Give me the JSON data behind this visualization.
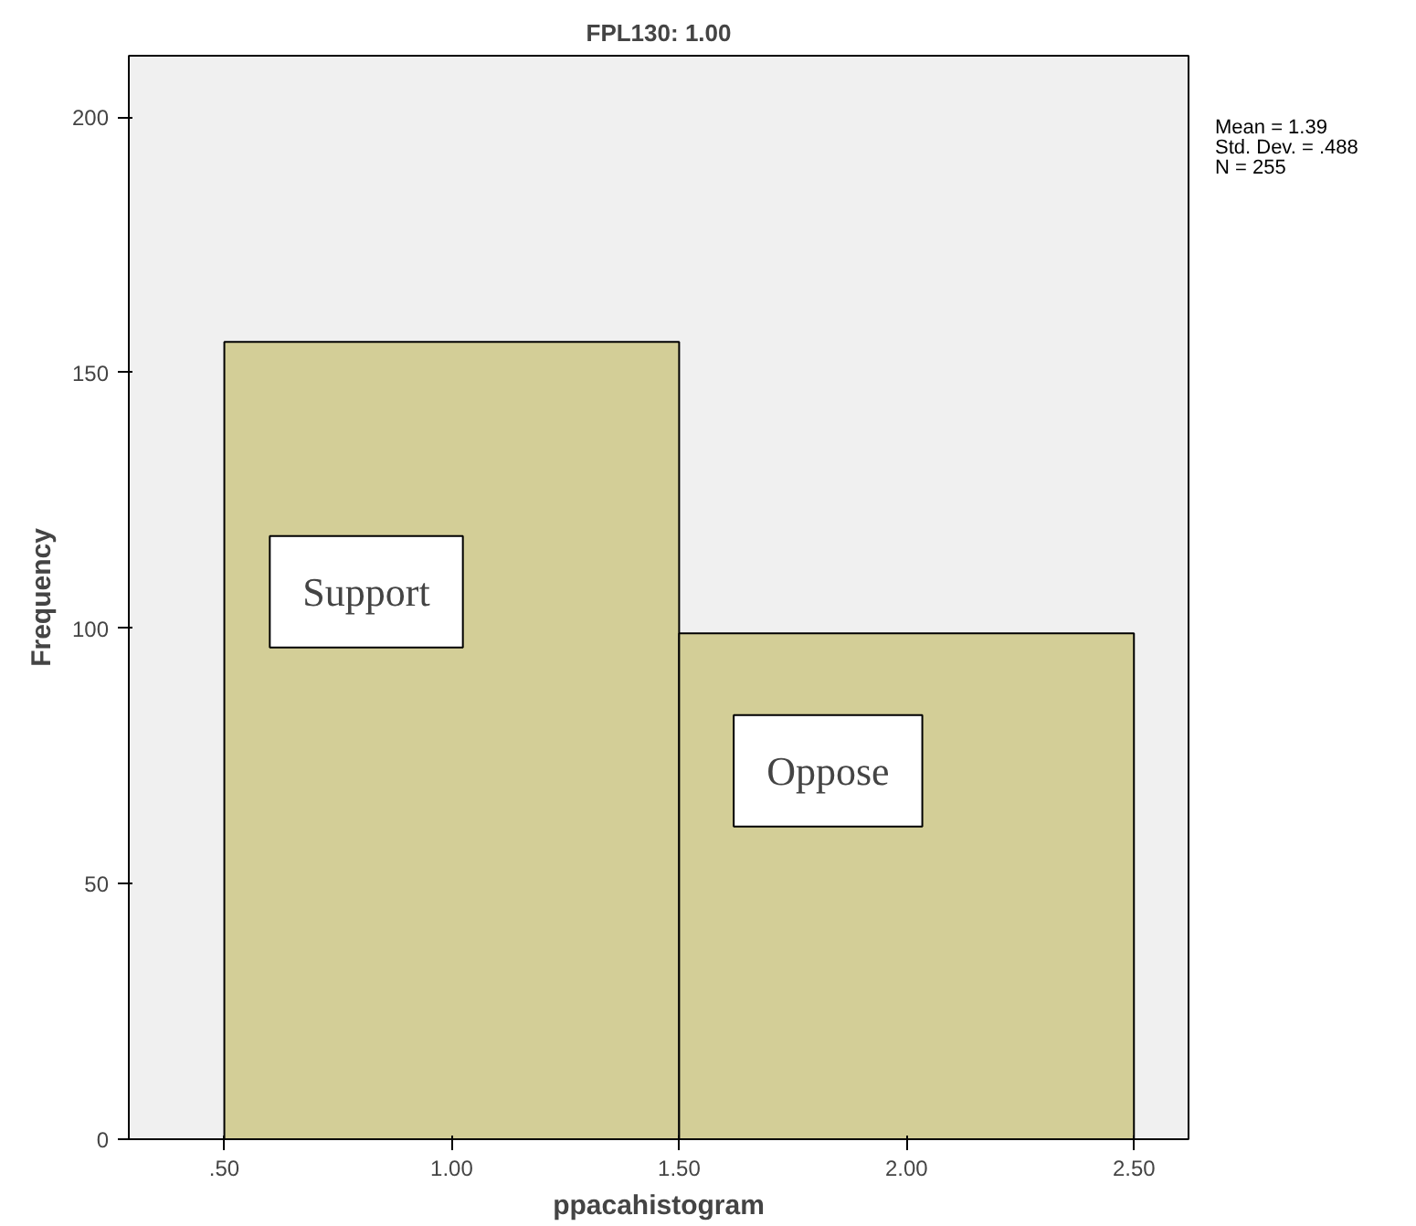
{
  "chart_data": {
    "type": "histogram",
    "title": "FPL130: 1.00",
    "xlabel": "ppacahistogram",
    "ylabel": "Frequency",
    "bins": [
      0.5,
      1.5,
      2.5
    ],
    "values": [
      156,
      99
    ],
    "color": "#d3ce97",
    "xlim": [
      0.29,
      2.62
    ],
    "ylim": [
      0,
      212
    ],
    "xticks": [
      {
        "value": 0.5,
        "label": ".50"
      },
      {
        "value": 1.0,
        "label": "1.00"
      },
      {
        "value": 1.5,
        "label": "1.50"
      },
      {
        "value": 2.0,
        "label": "2.00"
      },
      {
        "value": 2.5,
        "label": "2.50"
      }
    ],
    "yticks": [
      0,
      50,
      100,
      150,
      200
    ],
    "grid": false,
    "annotations": [
      "Mean = 1.39",
      "Std. Dev. = .488",
      "N = 255",
      "Support",
      "Oppose"
    ]
  }
}
